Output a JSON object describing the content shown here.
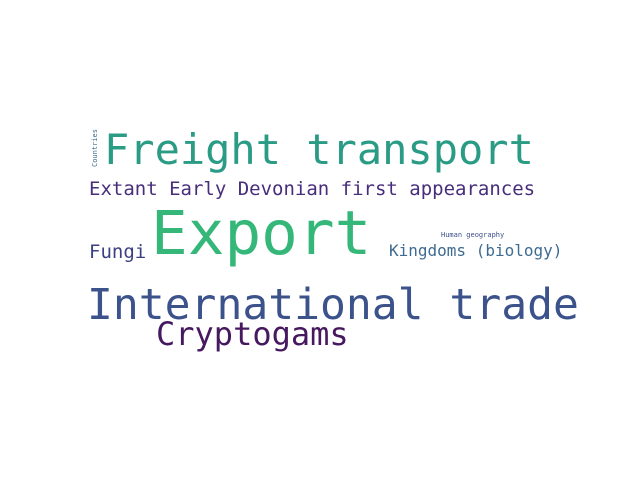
{
  "word_cloud": {
    "words": [
      {
        "id": "freight",
        "text": "Freight transport",
        "color": "#2a9b85"
      },
      {
        "id": "extant",
        "text": "Extant Early Devonian first appearances",
        "color": "#472d7b"
      },
      {
        "id": "export",
        "text": "Export",
        "color": "#35b779"
      },
      {
        "id": "fungi",
        "text": "Fungi",
        "color": "#3b3f82"
      },
      {
        "id": "kingdoms",
        "text": "Kingdoms (biology)",
        "color": "#3e6b91"
      },
      {
        "id": "human",
        "text": "Human geography",
        "color": "#3c4f8a"
      },
      {
        "id": "intl",
        "text": "International trade",
        "color": "#3b528b"
      },
      {
        "id": "crypto",
        "text": "Cryptogams",
        "color": "#46185f"
      },
      {
        "id": "countries",
        "text": "Countries",
        "color": "#3e6b91"
      }
    ]
  }
}
